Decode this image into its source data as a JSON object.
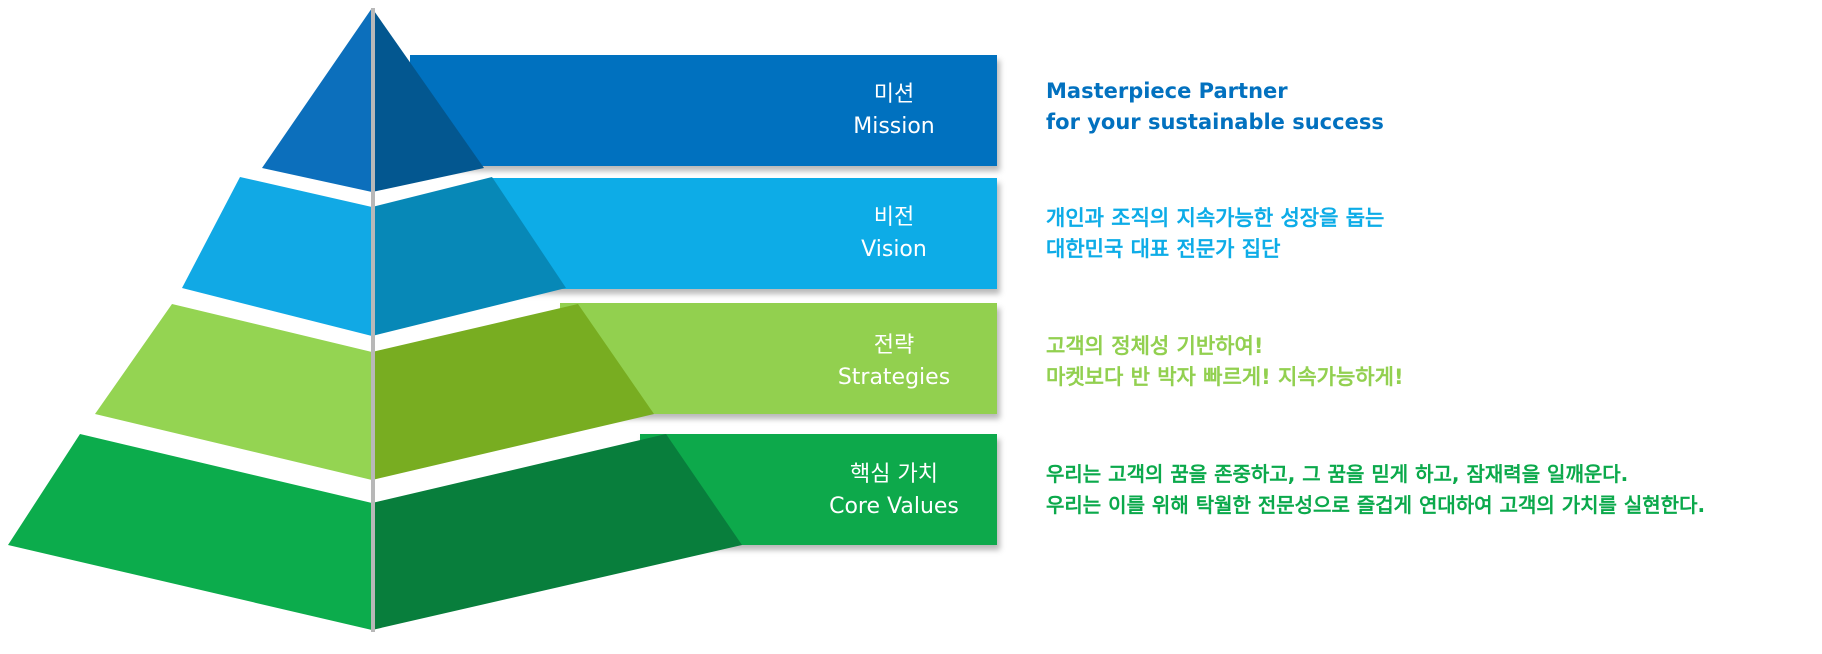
{
  "tiers": [
    {
      "label_ko": "미션",
      "label_en": "Mission",
      "description": [
        "Masterpiece Partner",
        "for your sustainable success"
      ],
      "colors": {
        "band": "#0271BF",
        "left": "#0C6FBC",
        "right": "#035790",
        "text": "#0271BF"
      }
    },
    {
      "label_ko": "비전",
      "label_en": "Vision",
      "description": [
        "개인과 조직의 지속가능한 성장을 돕는",
        "대한민국 대표 전문가 집단"
      ],
      "colors": {
        "band": "#0DACE7",
        "left": "#11A9E5",
        "right": "#0788B7",
        "text": "#0DACE7"
      }
    },
    {
      "label_ko": "전략",
      "label_en": "Strategies",
      "description": [
        "고객의 정체성 기반하여!",
        "마켓보다 반 박자 빠르게! 지속가능하게!"
      ],
      "colors": {
        "band": "#92D050",
        "left": "#94D452",
        "right": "#78AD21",
        "text": "#92D050"
      }
    },
    {
      "label_ko": "핵심 가치",
      "label_en": "Core Values",
      "description": [
        "우리는 고객의 꿈을 존중하고, 그 꿈을 믿게 하고, 잠재력을 일깨운다.",
        "우리는 이를 위해 탁월한 전문성으로 즐겁게 연대하여 고객의 가치를 실현한다."
      ],
      "colors": {
        "band": "#0BA94B",
        "left": "#0CAC4C",
        "right": "#087E3C",
        "text": "#0BA94B"
      }
    }
  ]
}
